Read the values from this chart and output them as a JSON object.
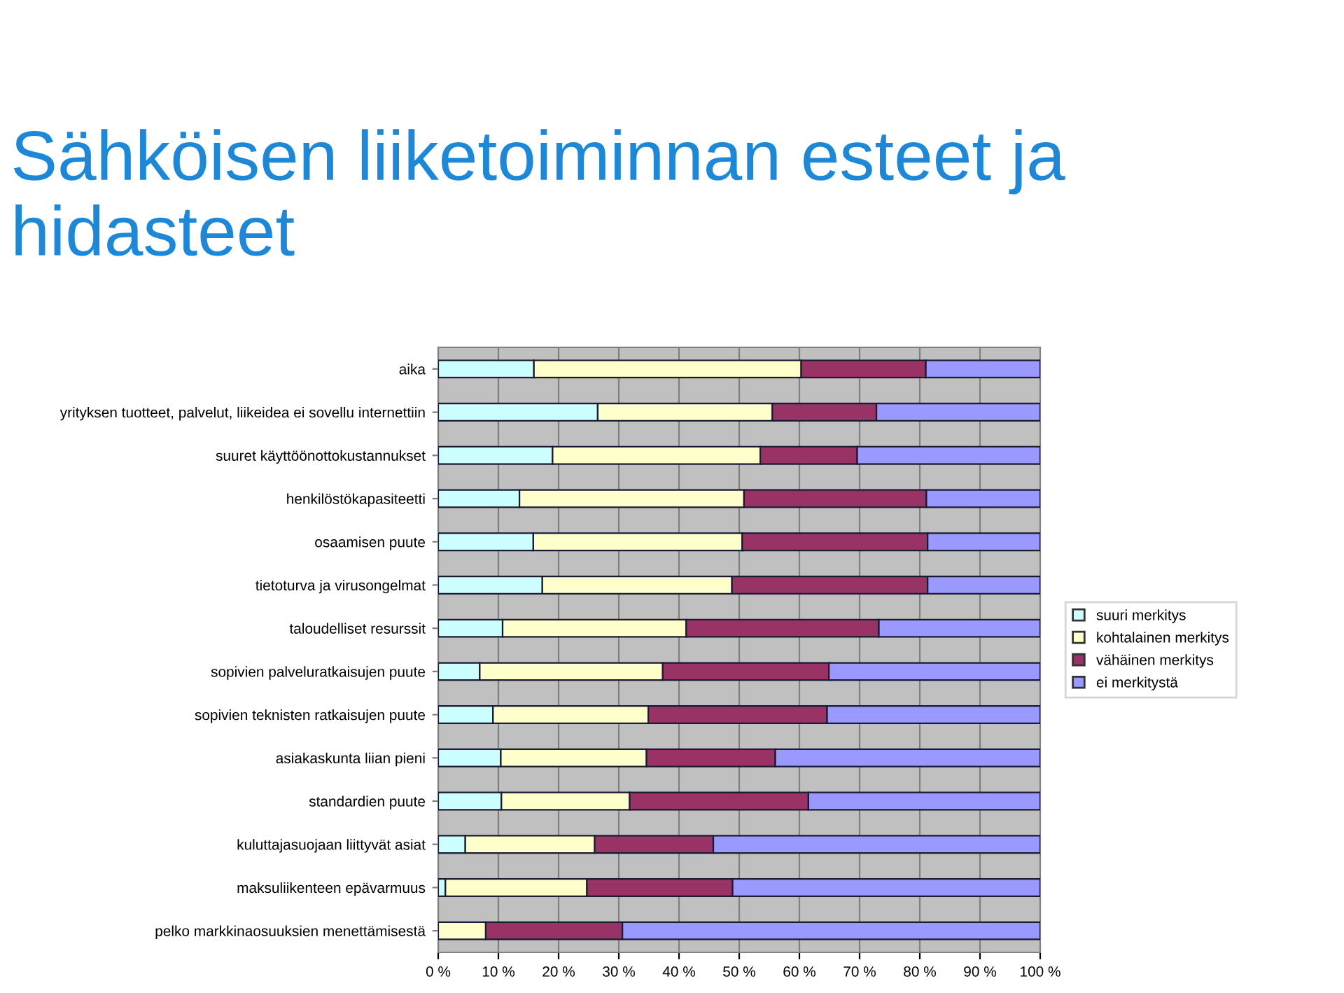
{
  "chart_data": {
    "type": "bar",
    "orientation": "horizontal",
    "stacked": true,
    "title": "Sähköisen liiketoiminnan esteet ja hidasteet",
    "categories": [
      "aika",
      "yrityksen tuotteet, palvelut, liikeidea ei sovellu internettiin",
      "suuret käyttöönottokustannukset",
      "henkilöstökapasiteetti",
      "osaamisen puute",
      "tietoturva ja virusongelmat",
      "taloudelliset resurssit",
      "sopivien palveluratkaisujen puute",
      "sopivien teknisten ratkaisujen puute",
      "asiakaskunta liian pieni",
      "standardien puute",
      "kuluttajasuojaan liittyvät asiat",
      "maksuliikenteen epävarmuus",
      "pelko markkinaosuuksien menettämisestä"
    ],
    "series": [
      {
        "name": "suuri merkitys",
        "color": "#ccffff",
        "values": [
          15.9,
          26.5,
          19.0,
          13.5,
          15.8,
          17.3,
          10.7,
          6.9,
          9.1,
          10.4,
          10.5,
          4.5,
          1.2,
          0
        ]
      },
      {
        "name": "kohtalainen merkitys",
        "color": "#ffffcc",
        "values": [
          44.4,
          29.0,
          34.5,
          37.3,
          34.7,
          31.5,
          30.5,
          30.4,
          25.8,
          24.2,
          21.3,
          21.5,
          23.5,
          7.9
        ]
      },
      {
        "name": "vähäinen merkitys",
        "color": "#993366",
        "values": [
          20.7,
          17.3,
          16.1,
          30.3,
          30.8,
          32.5,
          32.0,
          27.6,
          29.7,
          21.4,
          29.7,
          19.7,
          24.2,
          22.7
        ]
      },
      {
        "name": "ei merkitystä",
        "color": "#9999ff",
        "values": [
          19.0,
          27.2,
          30.4,
          18.9,
          18.7,
          18.7,
          26.8,
          35.1,
          35.4,
          44.0,
          38.5,
          54.3,
          51.1,
          69.4
        ]
      }
    ],
    "xlim": [
      0,
      100
    ],
    "xticks": [
      {
        "value": 0,
        "label": "0 %"
      },
      {
        "value": 10,
        "label": "10 %"
      },
      {
        "value": 20,
        "label": "20 %"
      },
      {
        "value": 30,
        "label": "30 %"
      },
      {
        "value": 40,
        "label": "40 %"
      },
      {
        "value": 50,
        "label": "50 %"
      },
      {
        "value": 60,
        "label": "60 %"
      },
      {
        "value": 70,
        "label": "70 %"
      },
      {
        "value": 80,
        "label": "80 %"
      },
      {
        "value": 90,
        "label": "90 %"
      },
      {
        "value": 100,
        "label": "100 %"
      }
    ],
    "grid": "x",
    "legend": "right"
  }
}
